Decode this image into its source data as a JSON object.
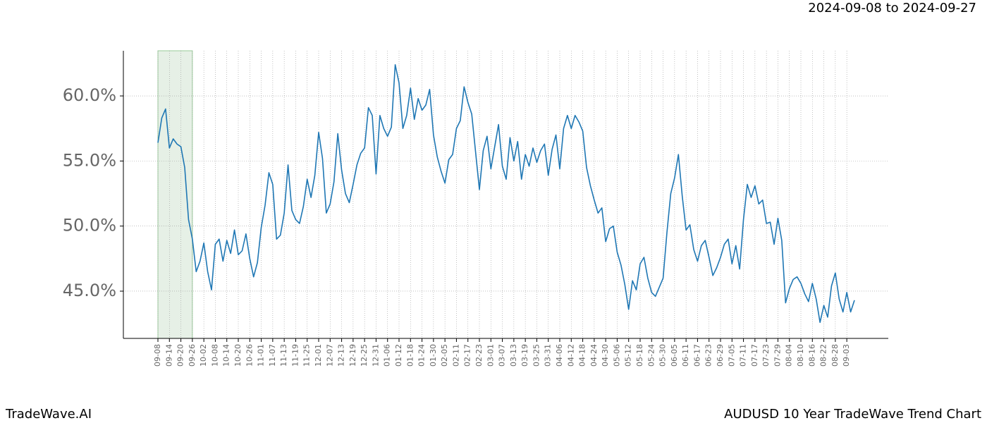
{
  "chart_data": {
    "type": "line",
    "date_range": "2024-09-08 to 2024-09-27",
    "brand": "TradeWave.AI",
    "title": "AUDUSD 10 Year TradeWave Trend Chart",
    "categories": [
      "09-08",
      null,
      null,
      "09-14",
      null,
      null,
      "09-20",
      null,
      null,
      "09-26",
      null,
      null,
      "10-02",
      null,
      null,
      "10-08",
      null,
      null,
      "10-14",
      null,
      null,
      "10-20",
      null,
      null,
      "10-26",
      null,
      null,
      "11-01",
      null,
      null,
      "11-07",
      null,
      null,
      "11-13",
      null,
      null,
      "11-19",
      null,
      null,
      "11-25",
      null,
      null,
      "12-01",
      null,
      null,
      "12-07",
      null,
      null,
      "12-13",
      null,
      null,
      "12-19",
      null,
      null,
      "12-25",
      null,
      null,
      "12-31",
      null,
      null,
      "01-06",
      null,
      null,
      "01-12",
      null,
      null,
      "01-18",
      null,
      null,
      "01-24",
      null,
      null,
      "01-30",
      null,
      null,
      "02-05",
      null,
      null,
      "02-11",
      null,
      null,
      "02-17",
      null,
      null,
      "02-23",
      null,
      null,
      "03-01",
      null,
      null,
      "03-07",
      null,
      null,
      "03-13",
      null,
      null,
      "03-19",
      null,
      null,
      "03-25",
      null,
      null,
      "03-31",
      null,
      null,
      "04-06",
      null,
      null,
      "04-12",
      null,
      null,
      "04-18",
      null,
      null,
      "04-24",
      null,
      null,
      "04-30",
      null,
      null,
      "05-06",
      null,
      null,
      "05-12",
      null,
      null,
      "05-18",
      null,
      null,
      "05-24",
      null,
      null,
      "05-30",
      null,
      null,
      "06-05",
      null,
      null,
      "06-11",
      null,
      null,
      "06-17",
      null,
      null,
      "06-23",
      null,
      null,
      "06-29",
      null,
      null,
      "07-05",
      null,
      null,
      "07-11",
      null,
      null,
      "07-17",
      null,
      null,
      "07-23",
      null,
      null,
      "07-29",
      null,
      null,
      "08-04",
      null,
      null,
      "08-10",
      null,
      null,
      "08-16",
      null,
      null,
      "08-22",
      null,
      null,
      "08-28",
      null,
      null,
      "09-03",
      null,
      null
    ],
    "series": [
      {
        "name": "AUDUSD",
        "color": "#1f77b4",
        "values": [
          56.4,
          58.3,
          59.0,
          56.0,
          56.7,
          56.3,
          56.1,
          54.5,
          50.5,
          49.0,
          46.5,
          47.3,
          48.7,
          46.5,
          45.1,
          48.6,
          49.0,
          47.3,
          48.9,
          47.9,
          49.7,
          47.8,
          48.1,
          49.4,
          47.5,
          46.1,
          47.2,
          49.9,
          51.6,
          54.1,
          53.2,
          49.0,
          49.3,
          51.0,
          54.7,
          51.2,
          50.5,
          50.2,
          51.5,
          53.6,
          52.2,
          53.9,
          57.2,
          55.2,
          51.0,
          51.7,
          53.4,
          57.1,
          54.3,
          52.5,
          51.8,
          53.2,
          54.7,
          55.6,
          56.0,
          59.1,
          58.5,
          54.0,
          58.5,
          57.5,
          56.9,
          57.6,
          62.4,
          61.0,
          57.5,
          58.5,
          60.6,
          58.2,
          59.8,
          58.9,
          59.3,
          60.5,
          57.0,
          55.3,
          54.2,
          53.3,
          55.1,
          55.5,
          57.5,
          58.1,
          60.7,
          59.5,
          58.6,
          55.7,
          52.8,
          55.8,
          56.9,
          54.4,
          56.1,
          57.8,
          54.6,
          53.6,
          56.8,
          55.0,
          56.5,
          53.6,
          55.5,
          54.6,
          56.0,
          54.9,
          55.8,
          56.3,
          53.9,
          55.9,
          57.0,
          54.4,
          57.5,
          58.5,
          57.5,
          58.5,
          58.0,
          57.3,
          54.5,
          53.1,
          52.0,
          51.0,
          51.4,
          48.8,
          49.8,
          50.0,
          48.0,
          47.0,
          45.5,
          43.6,
          45.8,
          45.1,
          47.1,
          47.6,
          46.0,
          44.9,
          44.6,
          45.3,
          46.0,
          49.5,
          52.5,
          53.7,
          55.5,
          52.3,
          49.7,
          50.1,
          48.2,
          47.3,
          48.5,
          48.9,
          47.6,
          46.2,
          46.8,
          47.6,
          48.6,
          49.0,
          47.1,
          48.5,
          46.7,
          50.5,
          53.2,
          52.2,
          53.1,
          51.7,
          52.0,
          50.2,
          50.3,
          48.6,
          50.6,
          48.9,
          44.1,
          45.2,
          45.9,
          46.1,
          45.6,
          44.8,
          44.2,
          45.6,
          44.4,
          42.6,
          43.9,
          43.0,
          45.4,
          46.4,
          44.4,
          43.4,
          44.9,
          43.4,
          44.3
        ]
      }
    ],
    "highlight": [
      0,
      9
    ],
    "highlight_color": "#e6f0e6",
    "ylim": [
      41.37,
      63.47
    ],
    "yticks": [
      {
        "value": 45,
        "label": "45.0%"
      },
      {
        "value": 50,
        "label": "50.0%"
      },
      {
        "value": 55,
        "label": "55.0%"
      },
      {
        "value": 60,
        "label": "60.0%"
      }
    ],
    "grid": true
  }
}
